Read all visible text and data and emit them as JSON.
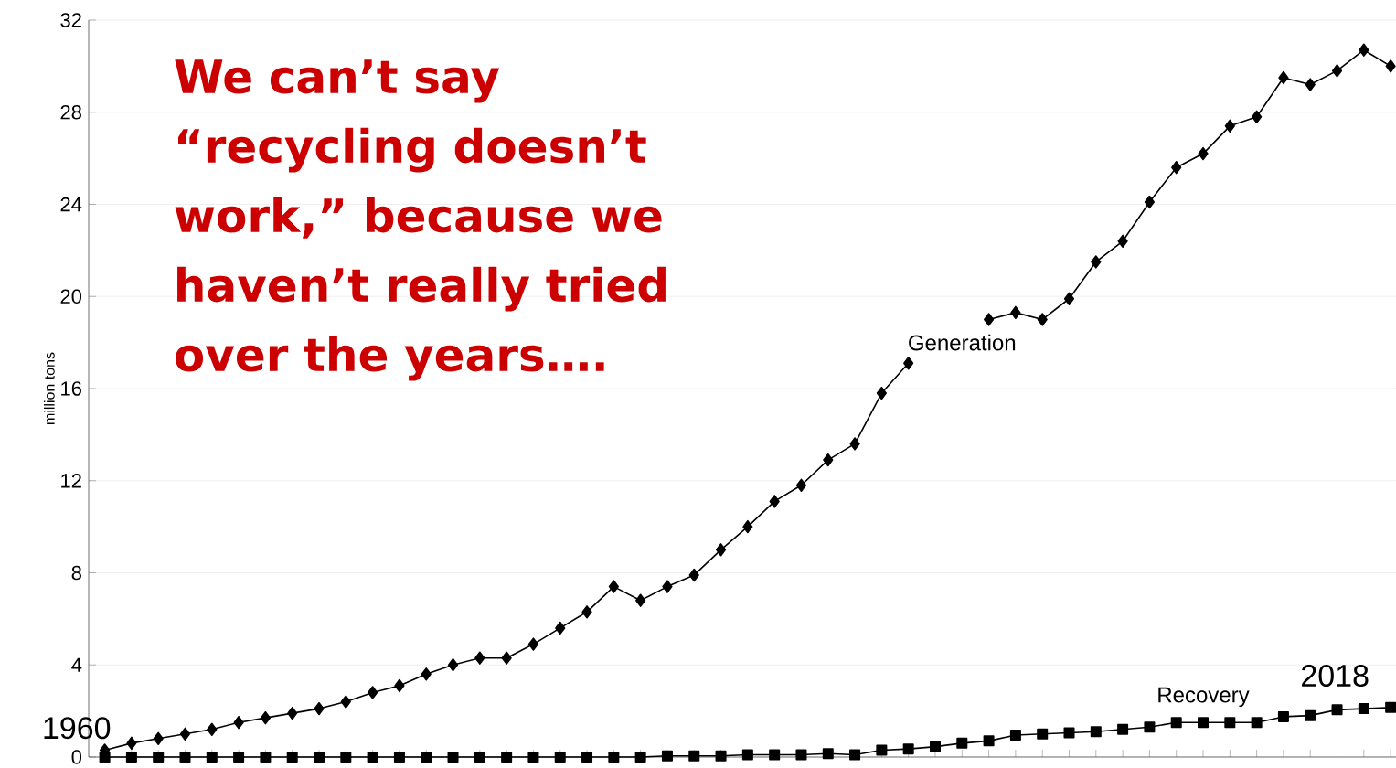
{
  "chart_data": {
    "type": "line",
    "ylabel": "million tons",
    "categories": [
      null,
      null,
      null,
      null,
      null,
      null,
      null,
      null,
      null,
      null,
      null,
      null,
      null,
      null,
      null,
      null,
      null,
      null,
      null,
      null,
      null,
      null,
      null,
      null,
      null,
      null,
      null,
      null,
      null,
      null,
      null,
      null,
      null,
      null,
      null,
      null,
      null,
      null,
      null,
      null,
      null,
      null,
      null,
      null,
      null,
      null,
      null,
      null,
      null
    ],
    "series": [
      {
        "name": "Generation",
        "color": "#000000",
        "marker": "diamond",
        "values": [
          0.3,
          0.6,
          0.8,
          1.0,
          1.2,
          1.5,
          1.7,
          1.9,
          2.1,
          2.4,
          2.8,
          3.1,
          3.6,
          4.0,
          4.3,
          4.3,
          4.9,
          5.6,
          6.3,
          7.4,
          6.8,
          7.4,
          7.9,
          9.0,
          10.0,
          11.1,
          11.8,
          12.9,
          13.6,
          15.8,
          17.1,
          null,
          null,
          19.0,
          19.3,
          19.0,
          19.9,
          21.5,
          22.4,
          24.1,
          25.6,
          26.2,
          27.4,
          27.8,
          29.5,
          29.2,
          29.8,
          30.7,
          30.0
        ]
      },
      {
        "name": "Recovery",
        "color": "#000000",
        "marker": "square",
        "values": [
          0,
          0,
          0,
          0,
          0,
          0,
          0,
          0,
          0,
          0,
          0,
          0,
          0,
          0,
          0,
          0,
          0,
          0,
          0,
          0,
          0,
          0.05,
          0.05,
          0.05,
          0.1,
          0.1,
          0.1,
          0.15,
          0.1,
          0.3,
          0.35,
          0.45,
          0.6,
          0.7,
          0.95,
          1.0,
          1.05,
          1.1,
          1.2,
          1.3,
          1.5,
          1.5,
          1.5,
          1.5,
          1.75,
          1.8,
          2.05,
          2.1,
          2.15
        ]
      }
    ],
    "ylim": [
      0,
      32
    ],
    "yticks": [
      0,
      4,
      8,
      12,
      16,
      20,
      24,
      28,
      32
    ],
    "grid": "y",
    "line_style": "solid",
    "annotations": [
      "We can’t say “recycling doesn’t work,” because we haven’t really tried over the years….",
      "1960",
      "2018"
    ]
  }
}
